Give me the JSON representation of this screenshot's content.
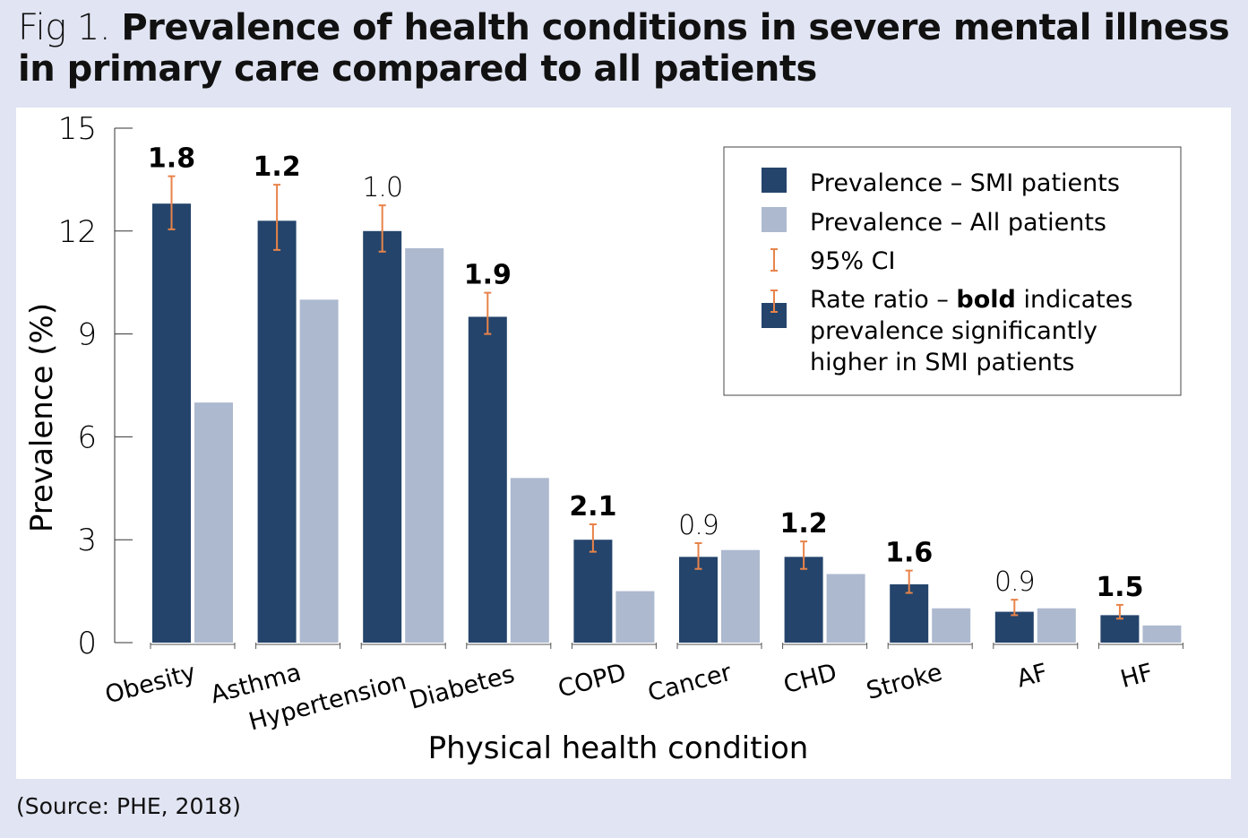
{
  "figure": {
    "prefix": "Fig 1.",
    "title": "Prevalence of health conditions in severe mental illness in primary care compared to all patients",
    "source": "(Source: PHE, 2018)"
  },
  "chart_data": {
    "type": "bar",
    "xlabel": "Physical health condition",
    "ylabel": "Prevalence (%)",
    "ylim": [
      0,
      15
    ],
    "yticks": [
      0,
      3,
      6,
      9,
      12,
      15
    ],
    "categories": [
      "Obesity",
      "Asthma",
      "Hypertension",
      "Diabetes",
      "COPD",
      "Cancer",
      "CHD",
      "Stroke",
      "AF",
      "HF"
    ],
    "series": [
      {
        "name": "Prevalence – SMI patients",
        "color": "#24446b",
        "values": [
          12.8,
          12.3,
          12.0,
          9.5,
          3.0,
          2.5,
          2.5,
          1.7,
          0.9,
          0.8
        ],
        "ci_low": [
          12.05,
          11.45,
          11.4,
          9.0,
          2.65,
          2.15,
          2.15,
          1.45,
          0.8,
          0.7
        ],
        "ci_high": [
          13.6,
          13.35,
          12.75,
          10.2,
          3.45,
          2.9,
          2.95,
          2.1,
          1.25,
          1.1
        ]
      },
      {
        "name": "Prevalence – All patients",
        "color": "#adb9cf",
        "values": [
          7.0,
          10.0,
          11.5,
          4.8,
          1.5,
          2.7,
          2.0,
          1.0,
          1.0,
          0.5
        ]
      }
    ],
    "rate_ratios": [
      {
        "label": "1.8",
        "bold": true
      },
      {
        "label": "1.2",
        "bold": true
      },
      {
        "label": "1.0",
        "bold": false
      },
      {
        "label": "1.9",
        "bold": true
      },
      {
        "label": "2.1",
        "bold": true
      },
      {
        "label": "0.9",
        "bold": false
      },
      {
        "label": "1.2",
        "bold": true
      },
      {
        "label": "1.6",
        "bold": true
      },
      {
        "label": "0.9",
        "bold": false
      },
      {
        "label": "1.5",
        "bold": true
      }
    ],
    "ci_color": "#e8834a",
    "legend": {
      "position": "top-right",
      "items": [
        "Prevalence – SMI patients",
        "Prevalence – All patients",
        "95% CI"
      ],
      "ratio_prefix": "Rate ratio – ",
      "ratio_bold": "bold",
      "ratio_rest1": " indicates",
      "ratio_line2": "prevalence significantly",
      "ratio_line3": "higher in SMI patients"
    }
  }
}
